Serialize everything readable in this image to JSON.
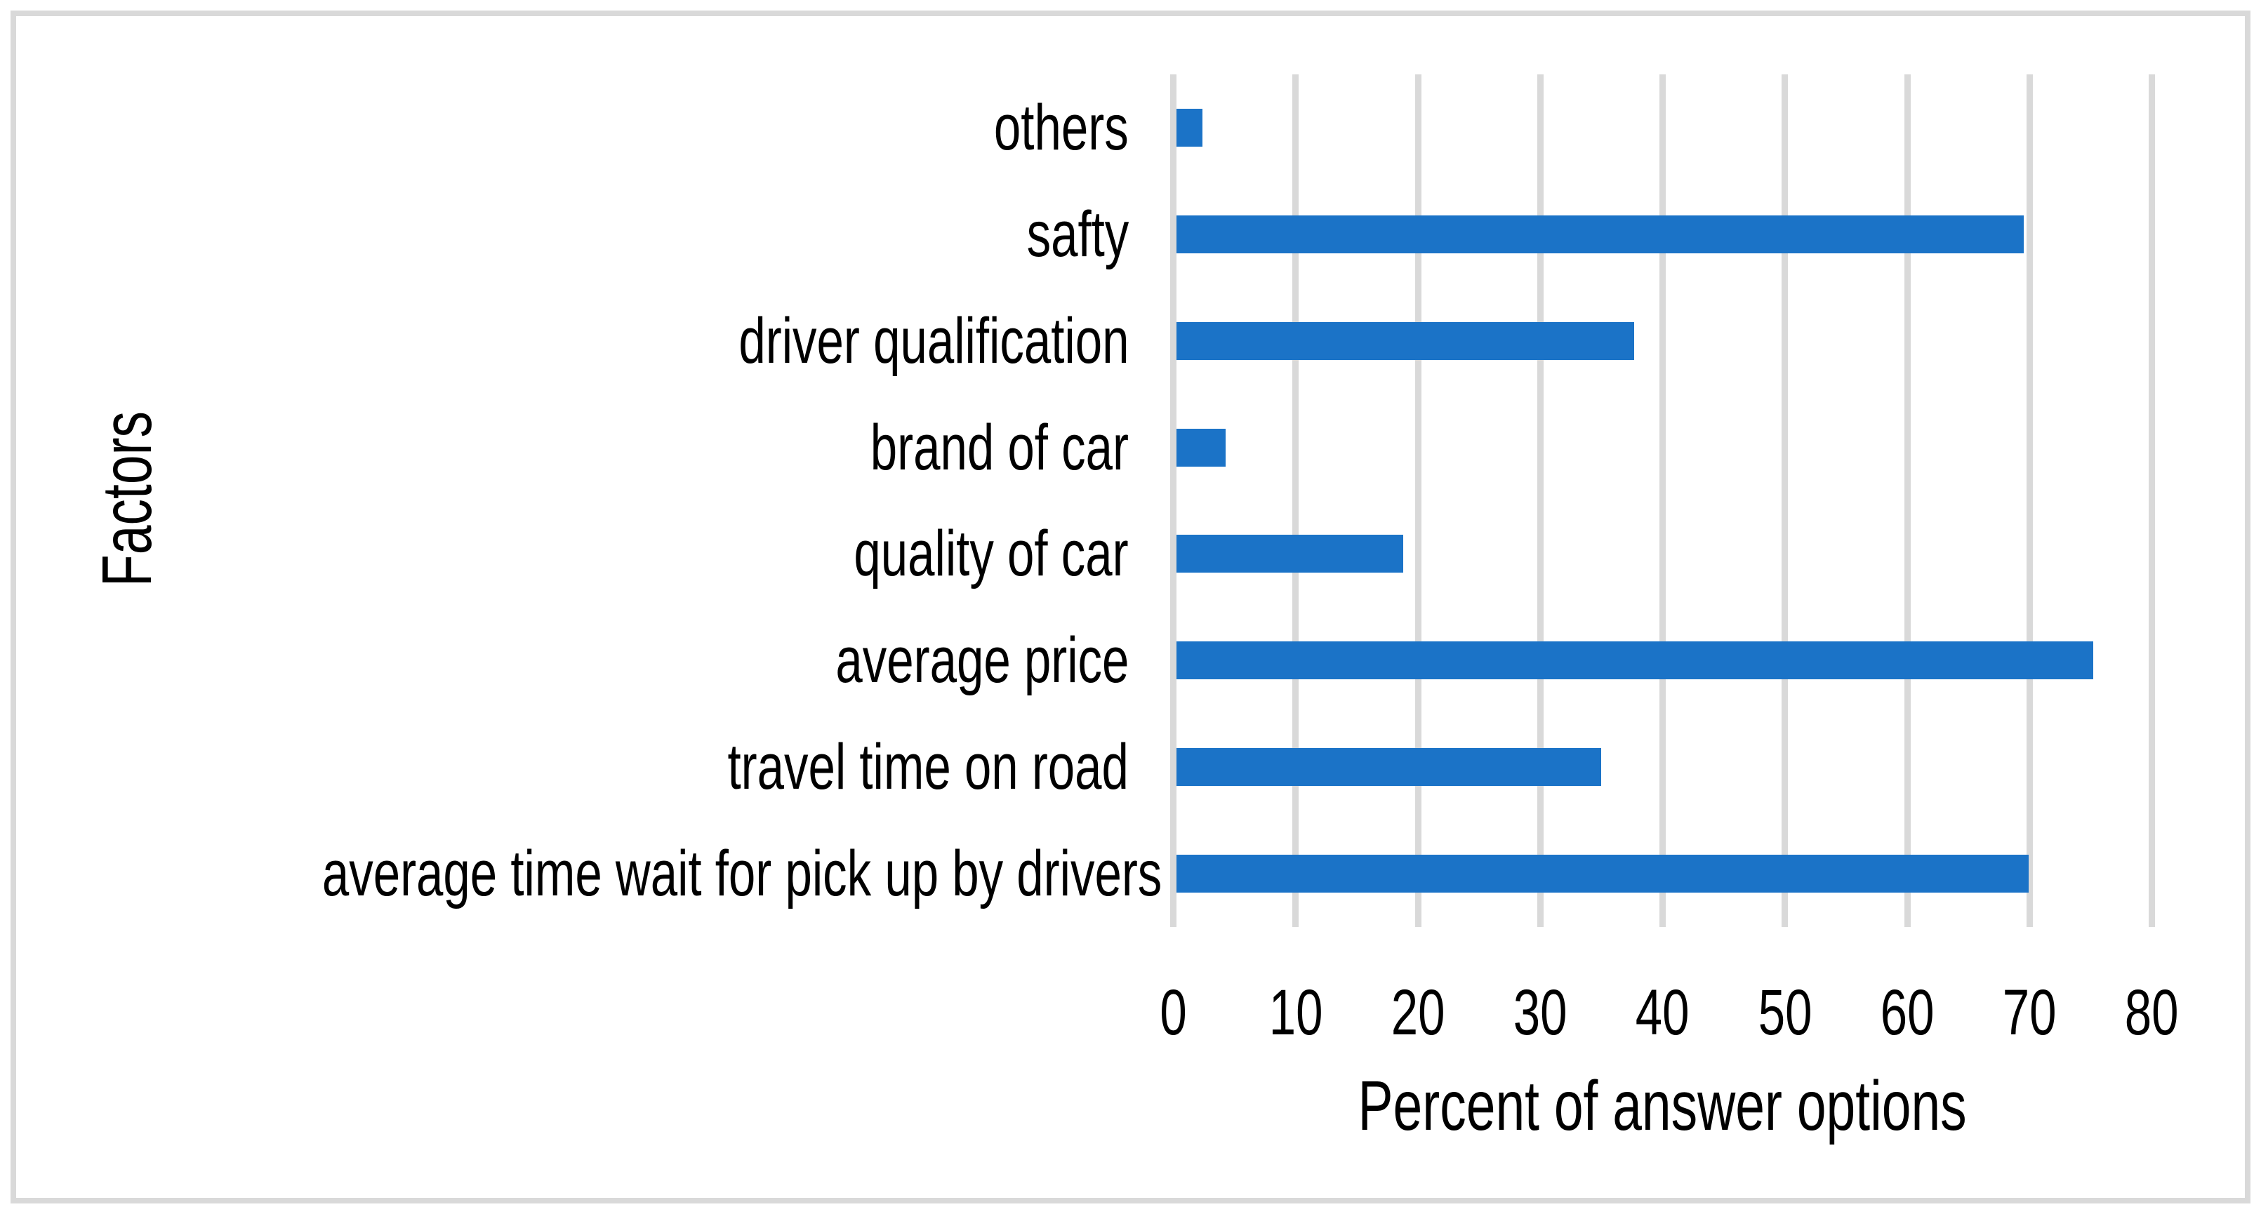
{
  "chart_data": {
    "type": "bar",
    "orientation": "horizontal",
    "title": "",
    "xlabel": "Percent of answer options",
    "ylabel": "Factors",
    "categories_top_to_bottom": [
      "others",
      "safty",
      "driver qualification",
      "brand of car",
      "quality of car",
      "average price",
      "travel time on road",
      "average time wait for pick up by drivers"
    ],
    "values": [
      2.4,
      69.5,
      37.7,
      4.3,
      18.8,
      75.2,
      35,
      69.9
    ],
    "xlim": [
      0,
      80
    ],
    "xticks": [
      0,
      10,
      20,
      30,
      40,
      50,
      60,
      70,
      80
    ],
    "grid": "vertical-only",
    "legend": "none",
    "bar_color": "#1b73c7",
    "gridline_color": "#d9d9d9",
    "text_color": "#000000",
    "frame_border_color": "#d9d9d9",
    "background_color": "#ffffff"
  }
}
